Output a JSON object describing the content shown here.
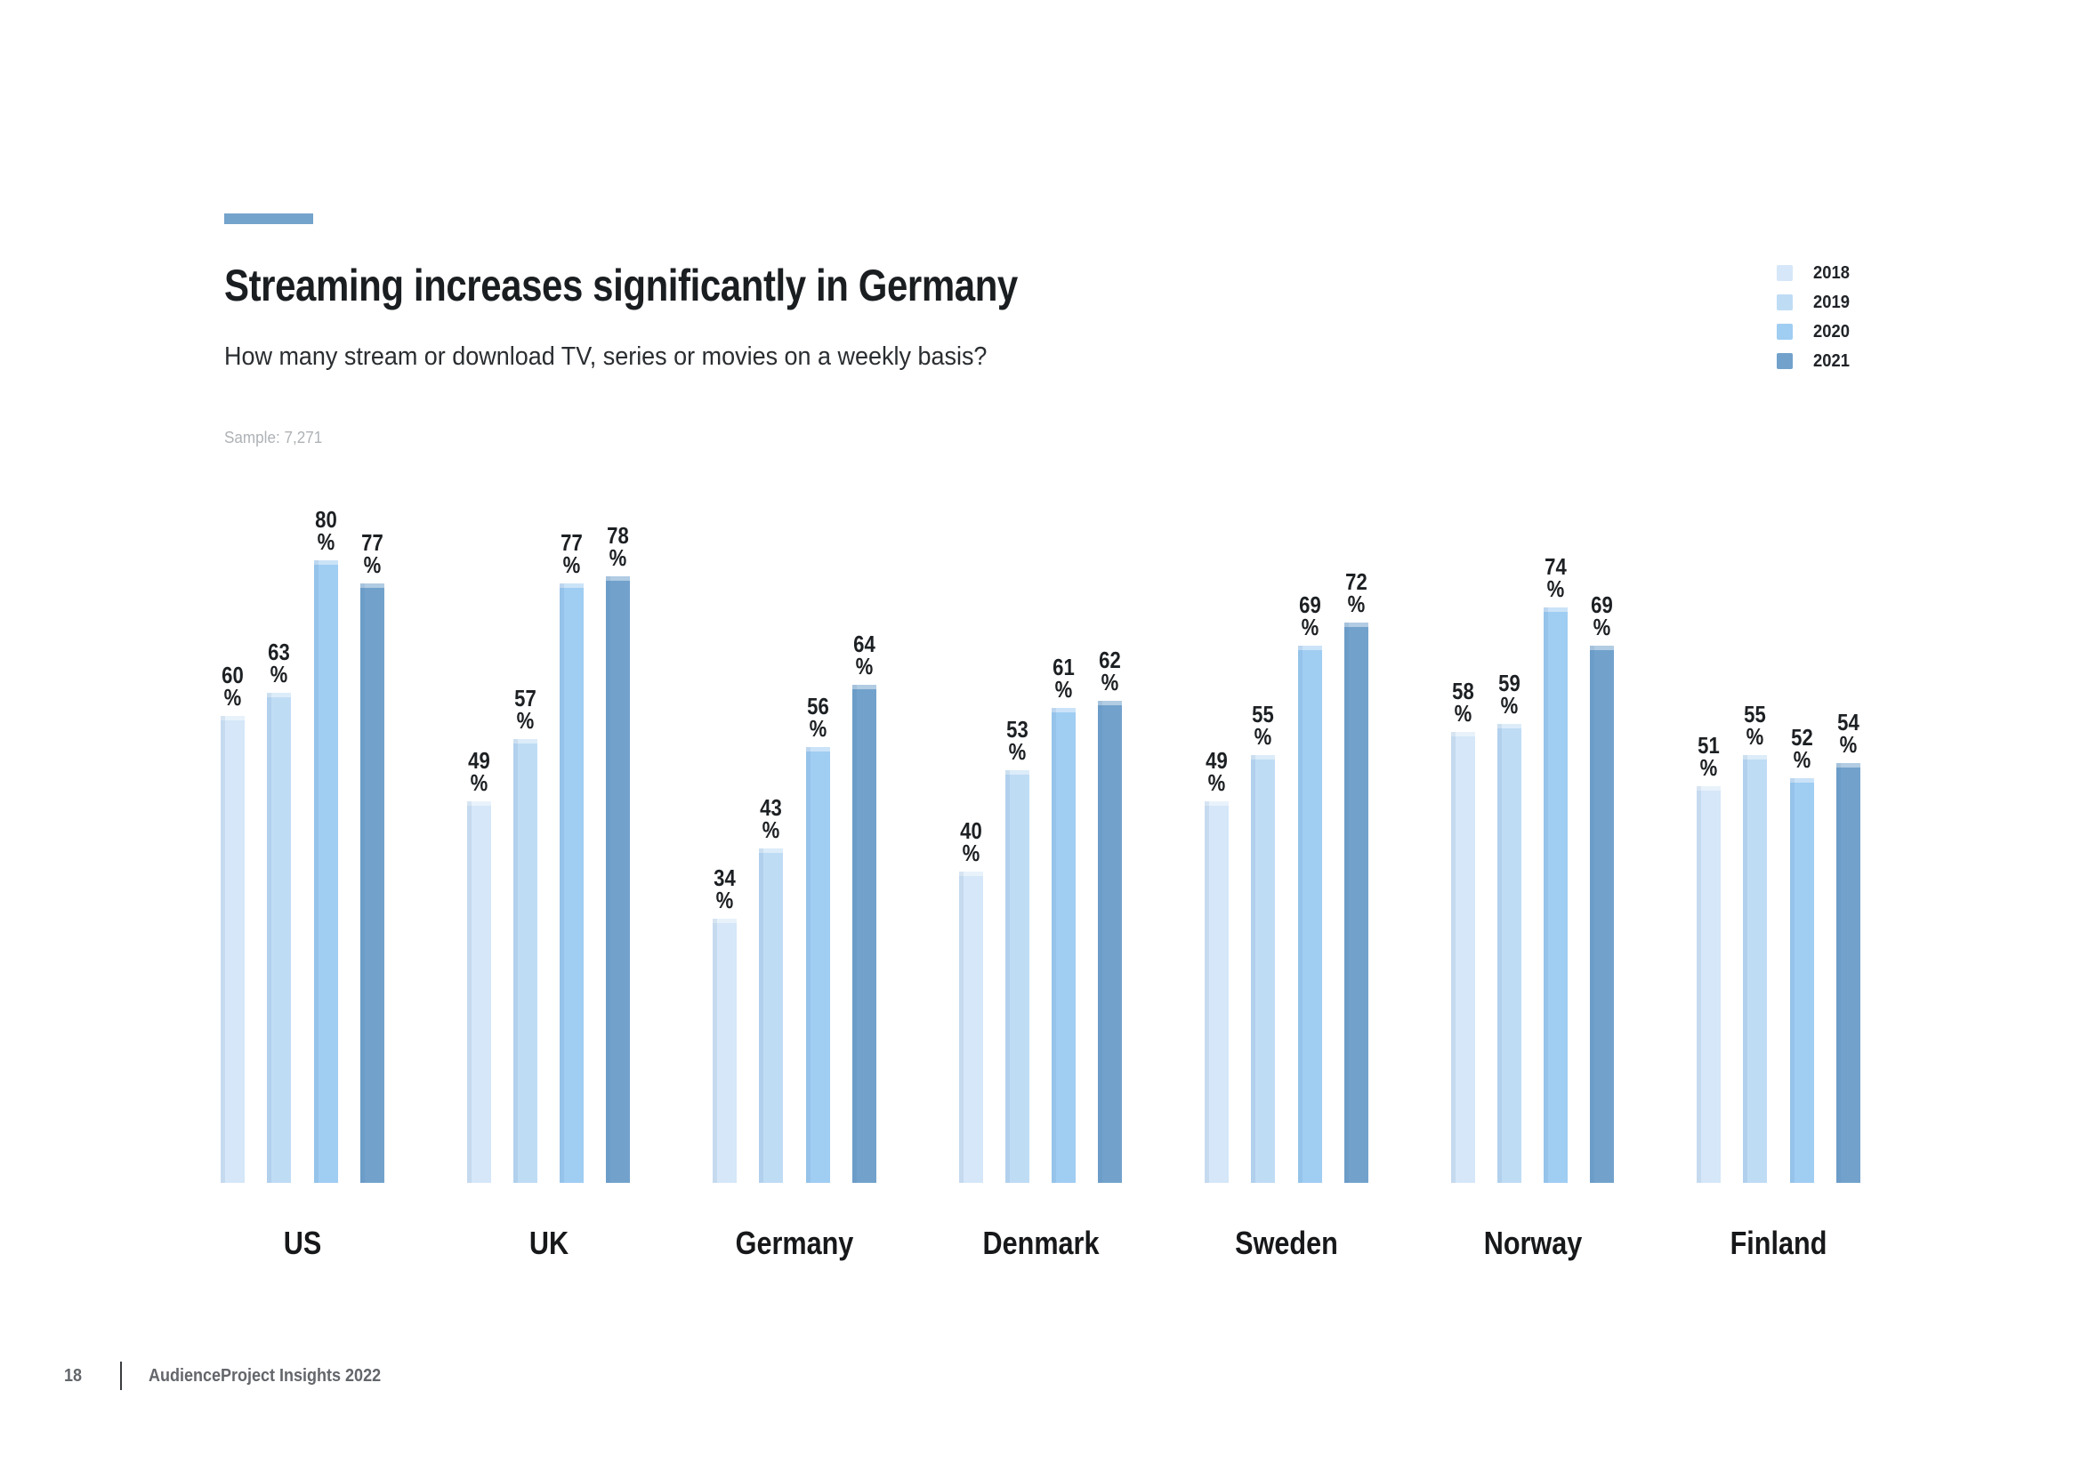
{
  "header": {
    "title": "Streaming increases significantly in Germany",
    "subtitle": "How many stream or download TV, series or movies on a weekly basis?",
    "sample": "Sample: 7,271"
  },
  "accent_color": "#74A3CB",
  "legend": [
    {
      "label": "2018",
      "color": "#D5E7F8"
    },
    {
      "label": "2019",
      "color": "#BFDCF5"
    },
    {
      "label": "2020",
      "color": "#A0CDF2"
    },
    {
      "label": "2021",
      "color": "#72A2CC"
    }
  ],
  "chart_data": {
    "type": "bar",
    "title": "Streaming increases significantly in Germany",
    "question": "How many stream or download TV, series or movies on a weekly basis?",
    "unit": "%",
    "categories": [
      "US",
      "UK",
      "Germany",
      "Denmark",
      "Sweden",
      "Norway",
      "Finland"
    ],
    "series": [
      {
        "name": "2018",
        "color": "#D5E7F8",
        "values": [
          60,
          49,
          34,
          40,
          49,
          58,
          51
        ]
      },
      {
        "name": "2019",
        "color": "#BFDCF5",
        "values": [
          63,
          57,
          43,
          53,
          55,
          59,
          55
        ]
      },
      {
        "name": "2020",
        "color": "#A0CDF2",
        "values": [
          80,
          77,
          56,
          61,
          69,
          74,
          52
        ]
      },
      {
        "name": "2021",
        "color": "#72A2CC",
        "values": [
          77,
          78,
          64,
          62,
          72,
          69,
          54
        ]
      }
    ],
    "ylim": [
      0,
      100
    ],
    "grid": false,
    "legend_position": "top-right",
    "value_labels": "above-bars, two lines: value then %"
  },
  "footer": {
    "page": "18",
    "label": "AudienceProject Insights 2022"
  }
}
